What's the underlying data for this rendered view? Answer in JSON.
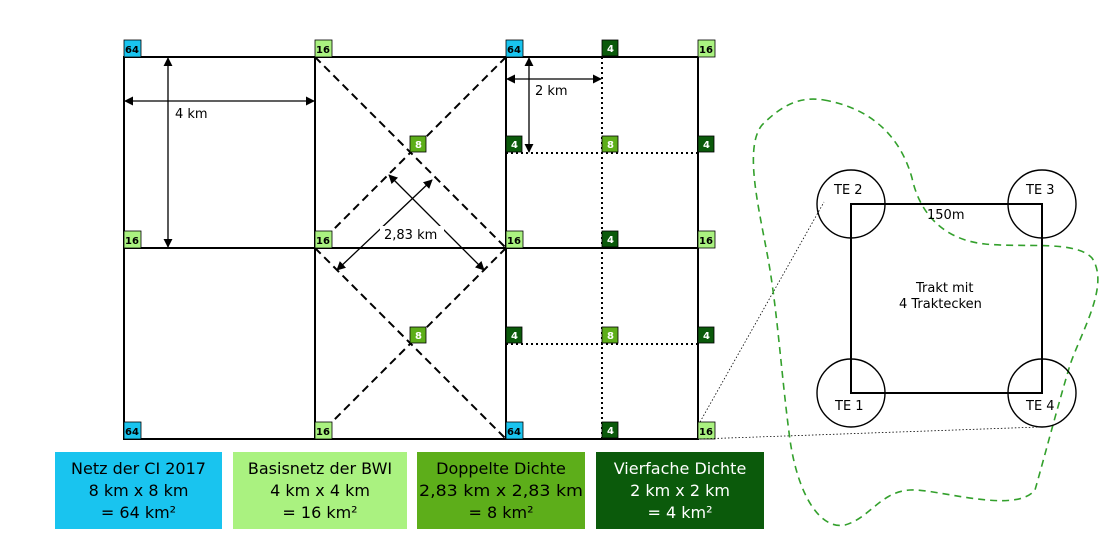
{
  "colors": {
    "cyan": "#19c4ef",
    "lightgreen": "#aaf280",
    "midgreen": "#5dae1a",
    "darkgreen": "#0b5a0b",
    "dashed_outline": "#33a02c"
  },
  "grid_tags": {
    "tag_64": "64",
    "tag_16": "16",
    "tag_8": "8",
    "tag_4": "4"
  },
  "measures": {
    "dist_4km": "4 km",
    "dist_2km": "2 km",
    "dist_283km": "2,83 km",
    "dist_150m": "150m"
  },
  "inset": {
    "te1": "TE 1",
    "te2": "TE 2",
    "te3": "TE 3",
    "te4": "TE 4",
    "tract_line1": "Trakt mit",
    "tract_line2": "4 Traktecken"
  },
  "legend": [
    {
      "line1": "Netz der CI 2017",
      "line2": "8 km x 8 km",
      "line3": "= 64 km²"
    },
    {
      "line1": "Basisnetz der BWI",
      "line2": "4 km x 4 km",
      "line3": "= 16 km²"
    },
    {
      "line1": "Doppelte Dichte",
      "line2": "2,83 km x 2,83 km",
      "line3": "= 8 km²"
    },
    {
      "line1": "Vierfache Dichte",
      "line2": "2 km x 2 km",
      "line3": "= 4 km²"
    }
  ]
}
